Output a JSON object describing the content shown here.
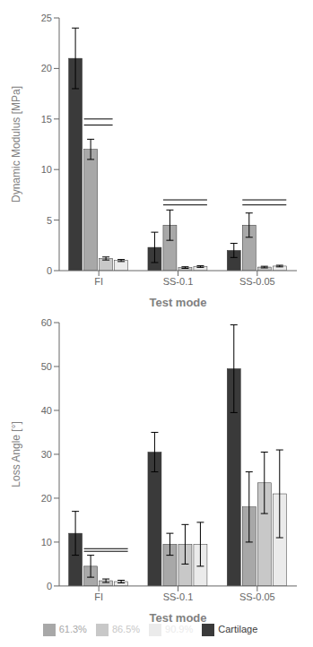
{
  "chart_data": [
    {
      "type": "bar",
      "xlabel": "Test mode",
      "ylabel": "Dynamic Modulus [MPa]",
      "categories": [
        "FI",
        "SS-0.1",
        "SS-0.05"
      ],
      "series": [
        {
          "name": "Cartilage",
          "color": "#3a3a3a",
          "values": [
            21.0,
            2.3,
            2.0
          ],
          "errors": [
            3.0,
            1.5,
            0.7
          ]
        },
        {
          "name": "61.3%",
          "color": "#a8a8a8",
          "values": [
            12.0,
            4.5,
            4.5
          ],
          "errors": [
            1.0,
            1.5,
            1.2
          ]
        },
        {
          "name": "86.5%",
          "color": "#c8c8c8",
          "values": [
            1.2,
            0.3,
            0.35
          ],
          "errors": [
            0.15,
            0.08,
            0.08
          ]
        },
        {
          "name": "90.9%",
          "color": "#ebebeb",
          "values": [
            1.0,
            0.4,
            0.45
          ],
          "errors": [
            0.1,
            0.08,
            0.08
          ]
        }
      ],
      "ylim": [
        0,
        25
      ],
      "yticks": [
        0,
        5,
        10,
        15,
        20,
        25
      ],
      "significance": [
        {
          "category": "FI",
          "from": "61.3%",
          "to": "86.5%",
          "y": [
            15.0,
            14.4
          ]
        },
        {
          "category": "SS-0.1",
          "from": "61.3%",
          "to": "90.9%",
          "y": [
            7.0,
            6.5
          ]
        },
        {
          "category": "SS-0.05",
          "from": "61.3%",
          "to": "90.9%",
          "y": [
            7.0,
            6.5
          ]
        }
      ]
    },
    {
      "type": "bar",
      "xlabel": "Test mode",
      "ylabel": "Loss Angle [°]",
      "categories": [
        "FI",
        "SS-0.1",
        "SS-0.05"
      ],
      "series": [
        {
          "name": "Cartilage",
          "color": "#3a3a3a",
          "values": [
            12.0,
            30.5,
            49.5
          ],
          "errors": [
            5.0,
            4.5,
            10.0
          ]
        },
        {
          "name": "61.3%",
          "color": "#a8a8a8",
          "values": [
            4.5,
            9.5,
            18.0
          ],
          "errors": [
            2.5,
            2.5,
            8.0
          ]
        },
        {
          "name": "86.5%",
          "color": "#c8c8c8",
          "values": [
            1.2,
            9.5,
            23.5
          ],
          "errors": [
            0.4,
            4.5,
            7.0
          ]
        },
        {
          "name": "90.9%",
          "color": "#ebebeb",
          "values": [
            1.0,
            9.5,
            21.0
          ],
          "errors": [
            0.3,
            5.0,
            10.0
          ]
        }
      ],
      "ylim": [
        0,
        60
      ],
      "yticks": [
        0,
        10,
        20,
        30,
        40,
        50,
        60
      ],
      "significance": [
        {
          "category": "FI",
          "from": "61.3%",
          "to": "90.9%",
          "y": [
            8.5,
            7.9
          ]
        }
      ],
      "legend": "bottom"
    }
  ]
}
